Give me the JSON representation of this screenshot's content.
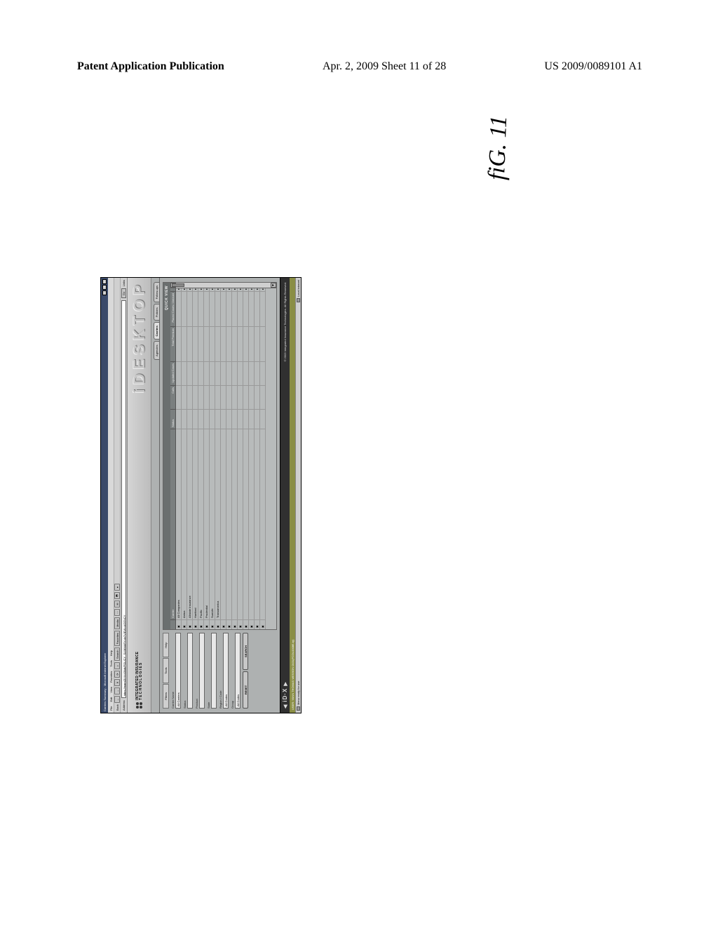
{
  "page_header": {
    "left": "Patent Application Publication",
    "center": "Apr. 2, 2009  Sheet 11 of 28",
    "right": "US 2009/0089101 A1"
  },
  "figure_label": "fiG. 11",
  "window": {
    "title": "Carriers Summary - Microsoft Internet Explorer",
    "controls": [
      "_",
      "□",
      "×"
    ]
  },
  "menubar": [
    "File",
    "Edit",
    "View",
    "Favorites",
    "Tools",
    "Help"
  ],
  "toolbar": {
    "back": "Back",
    "items": [
      "←",
      "→",
      "✕",
      "⟳",
      "⌂",
      "Search",
      "Favorites",
      "Media",
      "⋯",
      "✉",
      "🖶",
      "▾"
    ]
  },
  "addressbar": {
    "label": "Address",
    "url": "https://mgm05:9443/idt/POLICY_SUMMARY.do?VIEW=AGENCY",
    "go": "Go",
    "links": "Links"
  },
  "brand": {
    "line1": "INTEGRATED INSURANCE",
    "line2": "TECHNOLOGIES",
    "wordmark_chars": [
      "i",
      "D",
      "E",
      "S",
      "K",
      "T",
      "O",
      "P"
    ]
  },
  "nav_tabs": [
    {
      "label": "Agencies",
      "active": false
    },
    {
      "label": "Carriers",
      "active": true
    },
    {
      "label": "Policies",
      "active": false
    },
    {
      "label": "Follow-ups",
      "active": false
    }
  ],
  "left_panel": {
    "mini_tabs": [
      "Filters",
      "Tools",
      "Help"
    ],
    "fields": [
      {
        "label": "Carrier Name",
        "value": "All Carriers"
      },
      {
        "label": "Status",
        "value": ""
      },
      {
        "label": "Product",
        "value": ""
      },
      {
        "label": "State",
        "value": ""
      },
      {
        "label": "Region / Code",
        "value": "All Codes"
      },
      {
        "label": "Group",
        "value": "All Codes"
      }
    ],
    "buttons": [
      "RESET",
      "SEARCH"
    ]
  },
  "center": {
    "subhead_right": "QUICK VIEW",
    "columns": [
      "",
      "Carrier",
      "Status",
      "Calls",
      "Updated Cases",
      "Total Premium",
      "Placed Cases / Amount",
      ""
    ],
    "rows": [
      {
        "icon": "▣",
        "name": "All Companies",
        "status": "",
        "calls": "",
        "updated": "",
        "premium": "",
        "placed": ""
      },
      {
        "icon": "▣",
        "name": "Aetna",
        "status": "",
        "calls": "",
        "updated": "",
        "premium": "",
        "placed": ""
      },
      {
        "icon": "▣",
        "name": "Allstate Insurance",
        "status": "",
        "calls": "",
        "updated": "",
        "premium": "",
        "placed": ""
      },
      {
        "icon": "▣",
        "name": "Hartford",
        "status": "",
        "calls": "",
        "updated": "",
        "premium": "",
        "placed": ""
      },
      {
        "icon": "▣",
        "name": "Pacific",
        "status": "",
        "calls": "",
        "updated": "",
        "premium": "",
        "placed": ""
      },
      {
        "icon": "▣",
        "name": "Prudential",
        "status": "",
        "calls": "",
        "updated": "",
        "premium": "",
        "placed": ""
      },
      {
        "icon": "▣",
        "name": "SunLife",
        "status": "",
        "calls": "",
        "updated": "",
        "premium": "",
        "placed": ""
      },
      {
        "icon": "▣",
        "name": "Transamerica",
        "status": "",
        "calls": "",
        "updated": "",
        "premium": "",
        "placed": ""
      },
      {
        "icon": "▣",
        "name": "",
        "status": "",
        "calls": "",
        "updated": "",
        "premium": "",
        "placed": ""
      },
      {
        "icon": "▣",
        "name": "",
        "status": "",
        "calls": "",
        "updated": "",
        "premium": "",
        "placed": ""
      },
      {
        "icon": "▣",
        "name": "",
        "status": "",
        "calls": "",
        "updated": "",
        "premium": "",
        "placed": ""
      },
      {
        "icon": "▣",
        "name": "",
        "status": "",
        "calls": "",
        "updated": "",
        "premium": "",
        "placed": ""
      },
      {
        "icon": "▣",
        "name": "",
        "status": "",
        "calls": "",
        "updated": "",
        "premium": "",
        "placed": ""
      },
      {
        "icon": "▣",
        "name": "",
        "status": "",
        "calls": "",
        "updated": "",
        "premium": "",
        "placed": ""
      },
      {
        "icon": "▣",
        "name": "",
        "status": "",
        "calls": "",
        "updated": "",
        "premium": "",
        "placed": ""
      },
      {
        "icon": "▣",
        "name": "",
        "status": "",
        "calls": "",
        "updated": "",
        "premium": "",
        "placed": ""
      }
    ]
  },
  "footer": {
    "fx_label": "iD·X",
    "copyright": "© 2003 Integrated Insurance Technologies. All Rights Reserved."
  },
  "user_row": {
    "left": "USER: YANN THOMAS WESSON 0101(FCOL0008E-ty)",
    "right": ""
  },
  "statusbar": {
    "left": "Menu ready for use",
    "right": "Local intranet"
  },
  "colors": {
    "page_bg": "#ffffff",
    "window_bg": "#bfbfbf",
    "titlebar_bg": "#3a4a6a",
    "content_bg": "#aeb1b1",
    "footer_bg": "#303030",
    "userrow_bg": "#8a8e45"
  }
}
